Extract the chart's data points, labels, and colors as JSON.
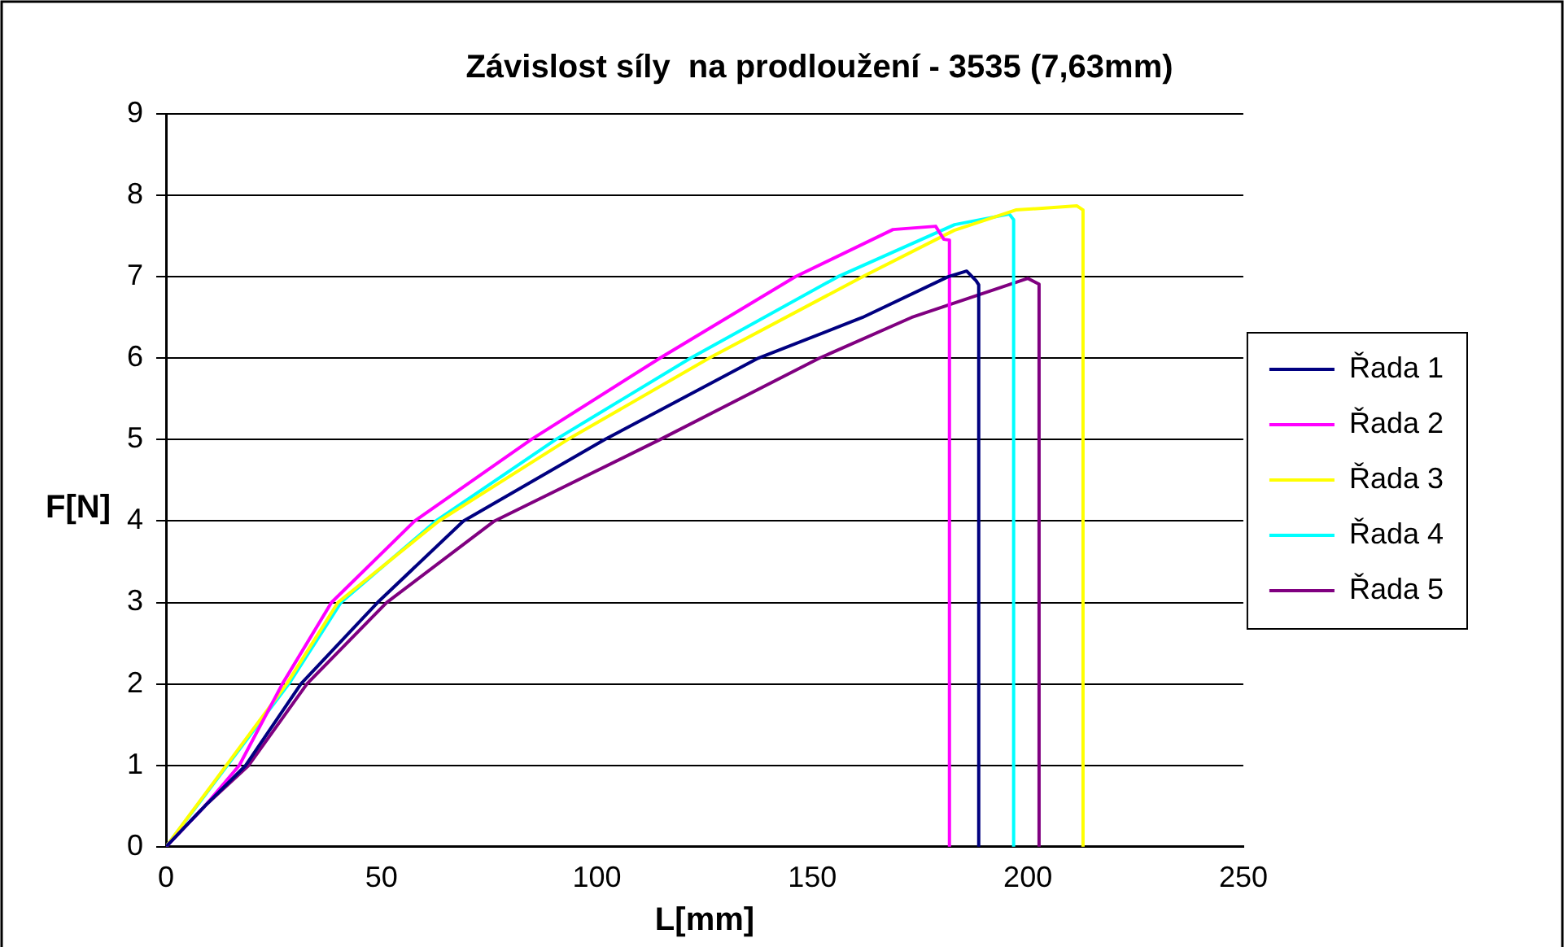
{
  "chart_data": {
    "type": "line",
    "title": "Závislost síly  na prodloužení - 3535 (7,63mm)",
    "xlabel": "L[mm]",
    "ylabel": "F[N]",
    "xlim": [
      0,
      250
    ],
    "xticks": [
      0,
      50,
      100,
      150,
      200,
      250
    ],
    "ylim": [
      0,
      9
    ],
    "yticks": [
      0,
      1,
      2,
      3,
      4,
      5,
      6,
      7,
      8,
      9
    ],
    "grid": "y",
    "legend": "right",
    "marker": "none",
    "series": [
      {
        "name": "Řada 1",
        "color": "#000080",
        "x": [
          0,
          9,
          18.5,
          31.3,
          49.1,
          69,
          101.8,
          137.4,
          161.6,
          181.5,
          185.8,
          188,
          188.6,
          188.6
        ],
        "values": [
          0,
          0.5,
          1,
          2,
          3,
          4,
          5,
          6,
          6.5,
          7,
          7.07,
          6.95,
          6.9,
          0
        ]
      },
      {
        "name": "Řada 2",
        "color": "#ff00ff",
        "x": [
          0,
          9,
          17,
          27,
          38.4,
          57.7,
          84.7,
          114.6,
          146,
          168.7,
          178.6,
          180.5,
          181.8,
          181.8
        ],
        "values": [
          0,
          0.5,
          1,
          2,
          3,
          4,
          5,
          6,
          7,
          7.58,
          7.62,
          7.46,
          7.45,
          0
        ]
      },
      {
        "name": "Řada 3",
        "color": "#ffff00",
        "x": [
          0,
          28,
          39.9,
          63.3,
          93.2,
          126,
          161.6,
          182.9,
          197.2,
          211.4,
          212.8,
          212.8
        ],
        "values": [
          0,
          2,
          3,
          4,
          5,
          6,
          7,
          7.57,
          7.82,
          7.87,
          7.82,
          0
        ]
      },
      {
        "name": "Řada 4",
        "color": "#00ffff",
        "x": [
          0,
          28.5,
          40.6,
          62.6,
          90.4,
          121.7,
          155.9,
          183,
          195.7,
          196.7,
          196.7
        ],
        "values": [
          0,
          2,
          3,
          4,
          5,
          6,
          7,
          7.64,
          7.77,
          7.7,
          0
        ]
      },
      {
        "name": "Řada 5",
        "color": "#800080",
        "x": [
          0,
          9,
          19.2,
          32.7,
          51.2,
          76.2,
          114.6,
          151.6,
          173,
          200,
          202.6,
          202.6
        ],
        "values": [
          0,
          0.5,
          1,
          2,
          3,
          4,
          5,
          6,
          6.5,
          6.98,
          6.91,
          0
        ]
      }
    ]
  }
}
